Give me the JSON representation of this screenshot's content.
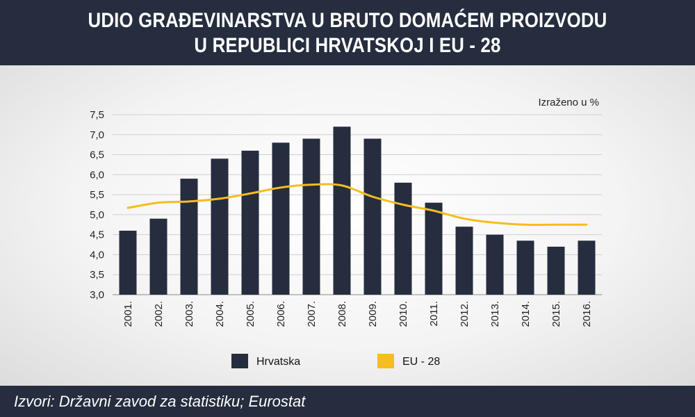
{
  "title_line1": "UDIO GRAĐEVINARSTVA U BRUTO DOMAĆEM PROIZVODU",
  "title_line2": "U REPUBLICI HRVATSKOJ I EU - 28",
  "unit_note": "Izraženo u %",
  "source": "Izvori: Državni zavod za statistiku; Eurostat",
  "colors": {
    "header_bg": "#252d3e",
    "bar": "#252d3e",
    "line": "#f5bd1f"
  },
  "chart_data": {
    "type": "bar",
    "categories": [
      "2001.",
      "2002.",
      "2003.",
      "2004.",
      "2005.",
      "2006.",
      "2007.",
      "2008.",
      "2009.",
      "2010.",
      "2011.",
      "2012.",
      "2013.",
      "2014.",
      "2015.",
      "2016."
    ],
    "series": [
      {
        "name": "Hrvatska",
        "type": "bar",
        "values": [
          4.6,
          4.9,
          5.9,
          6.4,
          6.6,
          6.8,
          6.9,
          7.2,
          6.9,
          5.8,
          5.3,
          4.7,
          4.5,
          4.35,
          4.2,
          4.35
        ]
      },
      {
        "name": "EU - 28",
        "type": "line",
        "values": [
          5.17,
          5.3,
          5.33,
          5.4,
          5.53,
          5.68,
          5.75,
          5.73,
          5.45,
          5.25,
          5.1,
          4.9,
          4.8,
          4.75,
          4.75,
          4.75
        ]
      }
    ],
    "ylim": [
      3.0,
      7.5
    ],
    "yticks": [
      "3,0",
      "3,5",
      "4,0",
      "4,5",
      "5,0",
      "5,5",
      "6,0",
      "6,5",
      "7,0",
      "7,5"
    ],
    "grid": true,
    "legend_position": "bottom"
  }
}
